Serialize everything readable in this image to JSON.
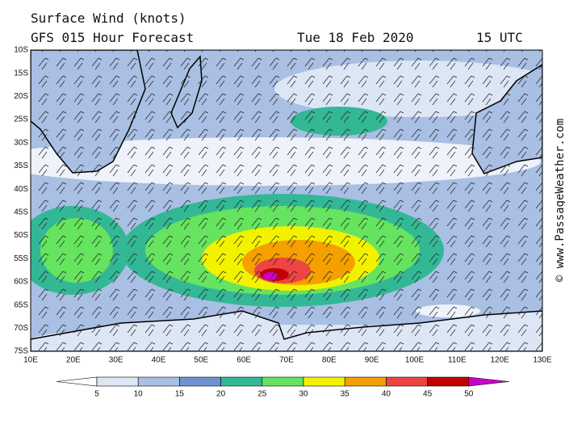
{
  "header": {
    "title": "Surface Wind (knots)",
    "model": "GFS 015 Hour Forecast",
    "date": "Tue 18 Feb 2020",
    "time": "15 UTC"
  },
  "map": {
    "latitude_labels": [
      "10S",
      "15S",
      "20S",
      "25S",
      "30S",
      "35S",
      "40S",
      "45S",
      "50S",
      "55S",
      "60S",
      "65S",
      "70S",
      "75S"
    ],
    "longitude_labels": [
      "10E",
      "20E",
      "30E",
      "40E",
      "50E",
      "60E",
      "70E",
      "80E",
      "90E",
      "100E",
      "110E",
      "120E",
      "130E"
    ]
  },
  "legend": {
    "levels": [
      5,
      10,
      15,
      20,
      25,
      30,
      35,
      40,
      45,
      50
    ],
    "colors": [
      "#ffffff",
      "#dde6f5",
      "#a9bfe3",
      "#6f92d2",
      "#33b896",
      "#66e35f",
      "#f2f200",
      "#f5a000",
      "#ee4444",
      "#c40000",
      "#cc00cc"
    ]
  },
  "watermark": "© www.PassageWeather.com"
}
